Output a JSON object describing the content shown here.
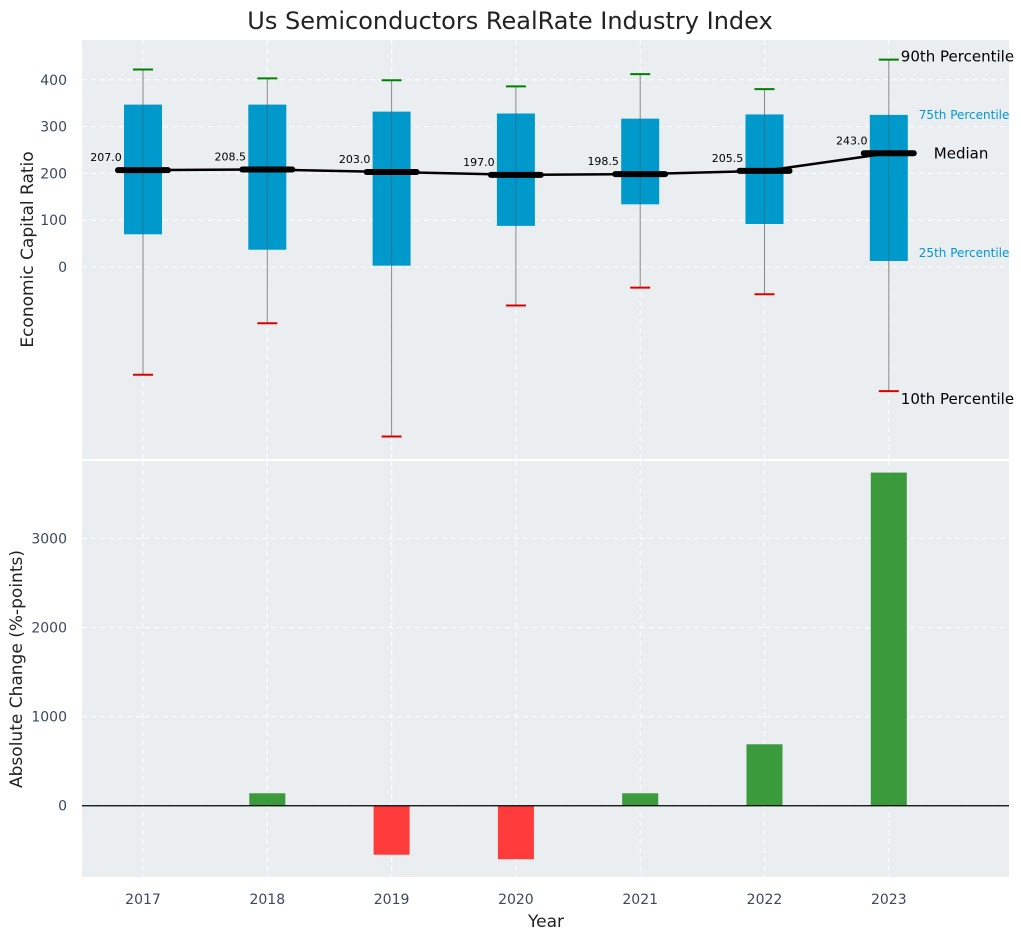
{
  "title": "Us Semiconductors RealRate Industry Index",
  "chart_data": [
    {
      "type": "box",
      "ylabel": "Economic Capital Ratio",
      "xlabel": "",
      "ylim": [
        -410,
        485
      ],
      "yticks": [
        0,
        100,
        200,
        300,
        400
      ],
      "grid": true,
      "years": [
        "2017",
        "2018",
        "2019",
        "2020",
        "2021",
        "2022",
        "2023"
      ],
      "p10": [
        -230,
        -120,
        -362,
        -82,
        -44,
        -58,
        -265
      ],
      "p25": [
        70,
        37,
        3,
        88,
        134,
        92,
        13
      ],
      "median": [
        207.0,
        208.5,
        203.0,
        197.0,
        198.5,
        205.5,
        243.0
      ],
      "median_labels": [
        "207.0",
        "208.5",
        "203.0",
        "197.0",
        "198.5",
        "205.5",
        "243.0"
      ],
      "p75": [
        347,
        347,
        332,
        328,
        317,
        326,
        325
      ],
      "p90": [
        422,
        403,
        399,
        386,
        412,
        380,
        443
      ],
      "legend": {
        "p90": "90th Percentile",
        "p75": "75th Percentile",
        "median": "Median",
        "p25": "25th Percentile",
        "p10": "10th Percentile"
      }
    },
    {
      "type": "bar",
      "xlabel": "Year",
      "ylabel": "Absolute Change (%-points)",
      "ylim": [
        -800,
        3870
      ],
      "yticks": [
        0,
        1000,
        2000,
        3000
      ],
      "grid": true,
      "categories": [
        "2017",
        "2018",
        "2019",
        "2020",
        "2021",
        "2022",
        "2023"
      ],
      "values": [
        0,
        140,
        -550,
        -600,
        140,
        690,
        3740
      ]
    }
  ],
  "colors": {
    "box": "#0099cc",
    "whisker": "#888888",
    "p90_cap": "#008000",
    "p10_cap": "#dd0000",
    "median": "#000000",
    "positive": "#3b9a3b",
    "negative": "#ff3b3b",
    "percentile_label": "#0099cc",
    "panel": "#eaeef0"
  }
}
